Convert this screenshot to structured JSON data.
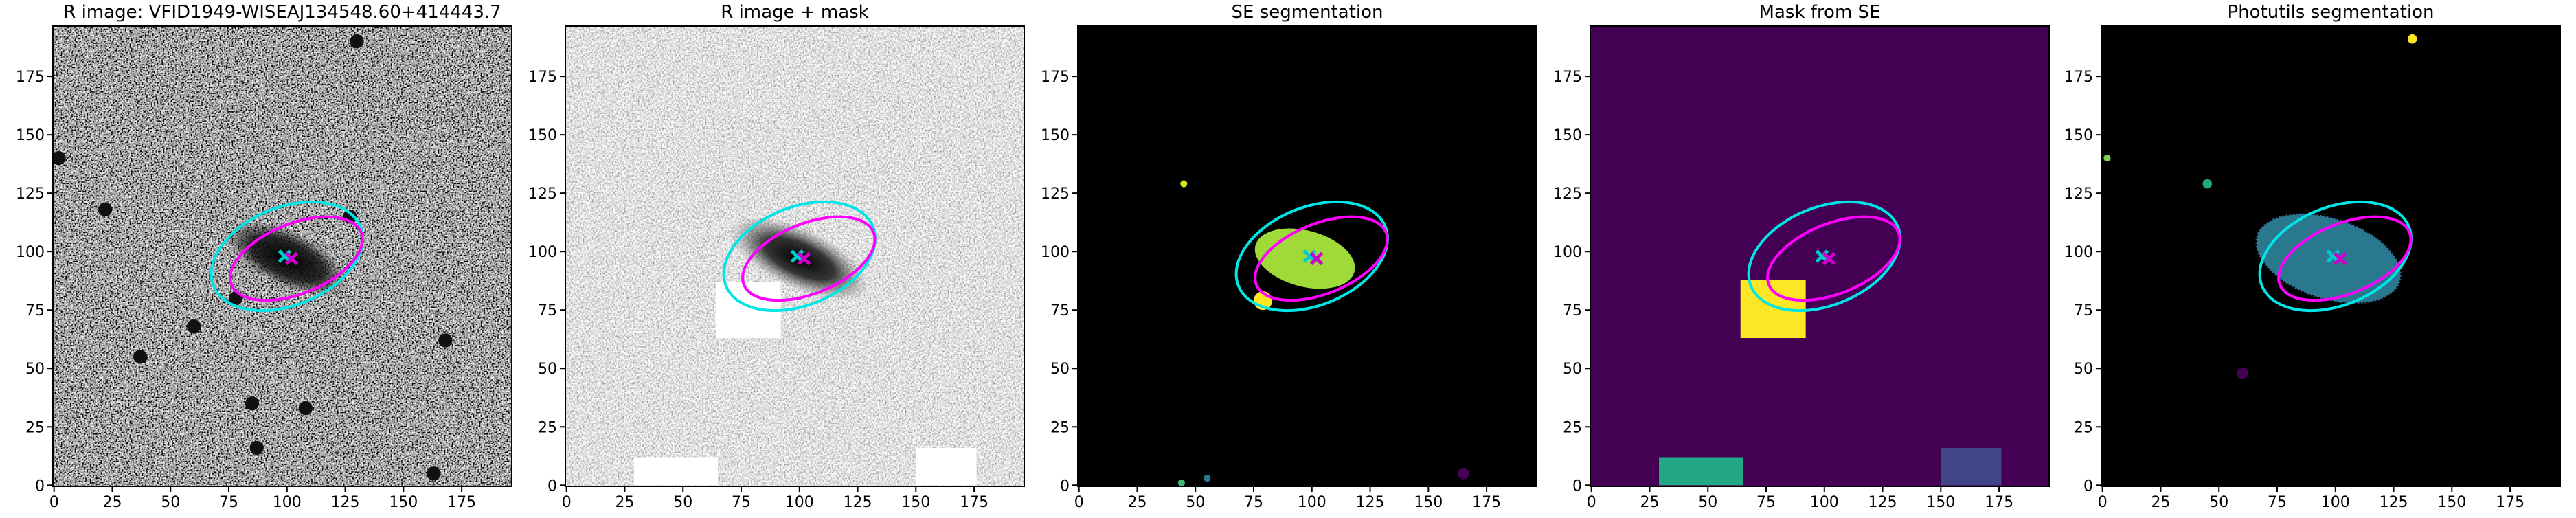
{
  "chart_data": [
    {
      "type": "image",
      "title": "R image: VFID1949-WISEAJ134548.60+414443.7",
      "style": "raw",
      "xlim": [
        -0.5,
        196.5
      ],
      "ylim": [
        -0.5,
        196.5
      ],
      "xticks": [
        0,
        25,
        50,
        75,
        100,
        125,
        150,
        175
      ],
      "yticks": [
        0,
        25,
        50,
        75,
        100,
        125,
        150,
        175
      ]
    },
    {
      "type": "image",
      "title": "R image + mask",
      "style": "masked",
      "xlim": [
        -0.5,
        196.5
      ],
      "ylim": [
        -0.5,
        196.5
      ],
      "xticks": [
        0,
        25,
        50,
        75,
        100,
        125,
        150,
        175
      ],
      "yticks": [
        0,
        25,
        50,
        75,
        100,
        125,
        150,
        175
      ]
    },
    {
      "type": "image",
      "title": "SE segmentation",
      "style": "se",
      "xlim": [
        -0.5,
        196.5
      ],
      "ylim": [
        -0.5,
        196.5
      ],
      "xticks": [
        0,
        25,
        50,
        75,
        100,
        125,
        150,
        175
      ],
      "yticks": [
        0,
        25,
        50,
        75,
        100,
        125,
        150,
        175
      ]
    },
    {
      "type": "image",
      "title": "Mask from SE",
      "style": "mask",
      "xlim": [
        -0.5,
        196.5
      ],
      "ylim": [
        -0.5,
        196.5
      ],
      "xticks": [
        0,
        25,
        50,
        75,
        100,
        125,
        150,
        175
      ],
      "yticks": [
        0,
        25,
        50,
        75,
        100,
        125,
        150,
        175
      ]
    },
    {
      "type": "image",
      "title": "Photutils segmentation",
      "style": "phot",
      "xlim": [
        -0.5,
        196.5
      ],
      "ylim": [
        -0.5,
        196.5
      ],
      "xticks": [
        0,
        25,
        50,
        75,
        100,
        125,
        150,
        175
      ],
      "yticks": [
        0,
        25,
        50,
        75,
        100,
        125,
        150,
        175
      ]
    }
  ]
}
